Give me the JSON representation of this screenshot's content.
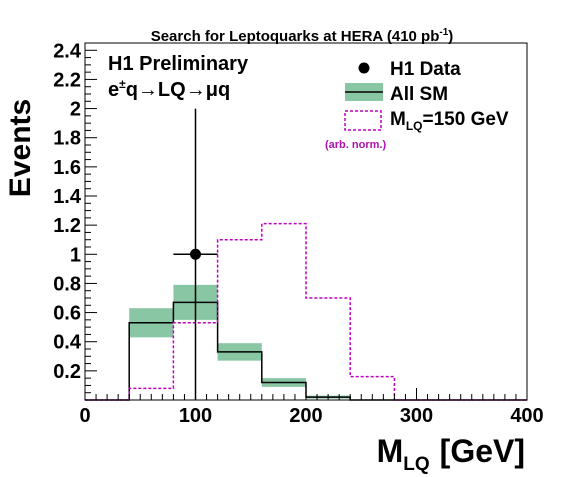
{
  "chart_data": {
    "type": "histogram",
    "title": "Search for Leptoquarks at HERA (410 pb",
    "title_superscript": "-1",
    "title_suffix": ")",
    "xlabel": "M",
    "xlabel_sub": "LQ",
    "xlabel_unit": "[GeV]",
    "ylabel": "Events",
    "xlim": [
      0,
      400
    ],
    "ylim": [
      0,
      2.45
    ],
    "x_ticks": [
      0,
      100,
      200,
      300,
      400
    ],
    "y_ticks": [
      0.2,
      0.4,
      0.6,
      0.8,
      1,
      1.2,
      1.4,
      1.6,
      1.8,
      2,
      2.2,
      2.4
    ],
    "bin_edges": [
      0,
      40,
      80,
      120,
      160,
      200,
      240,
      280,
      320,
      360,
      400
    ],
    "annotations": {
      "preliminary": "H1 Preliminary",
      "process_e": "e",
      "process_sup": "±",
      "process_rest": "q→LQ→μq",
      "arb_norm": "(arb. norm.)"
    },
    "series": [
      {
        "name": "H1 Data",
        "kind": "points",
        "color": "#000000",
        "points": [
          {
            "x": 100,
            "y": 1,
            "yerr_low": 1,
            "yerr_high": 1.0,
            "xerr": 20
          }
        ]
      },
      {
        "name": "All SM",
        "kind": "histogram-band",
        "color": "#000000",
        "band_color": "#88c6a4",
        "values": [
          0,
          0.53,
          0.67,
          0.33,
          0.12,
          0.02,
          0,
          0,
          0,
          0
        ],
        "band_low": [
          0,
          0.43,
          0.55,
          0.27,
          0.09,
          0.01,
          0,
          0,
          0,
          0
        ],
        "band_high": [
          0,
          0.63,
          0.79,
          0.39,
          0.15,
          0.03,
          0,
          0,
          0,
          0
        ]
      },
      {
        "name": "M",
        "name_sub": "LQ",
        "name_suffix": "=150 GeV",
        "kind": "histogram-dashed",
        "color": "#c000c0",
        "values": [
          0,
          0.08,
          0.53,
          1.1,
          1.21,
          0.7,
          0.16,
          0,
          0,
          0
        ]
      }
    ],
    "legend_position": "top-right"
  }
}
